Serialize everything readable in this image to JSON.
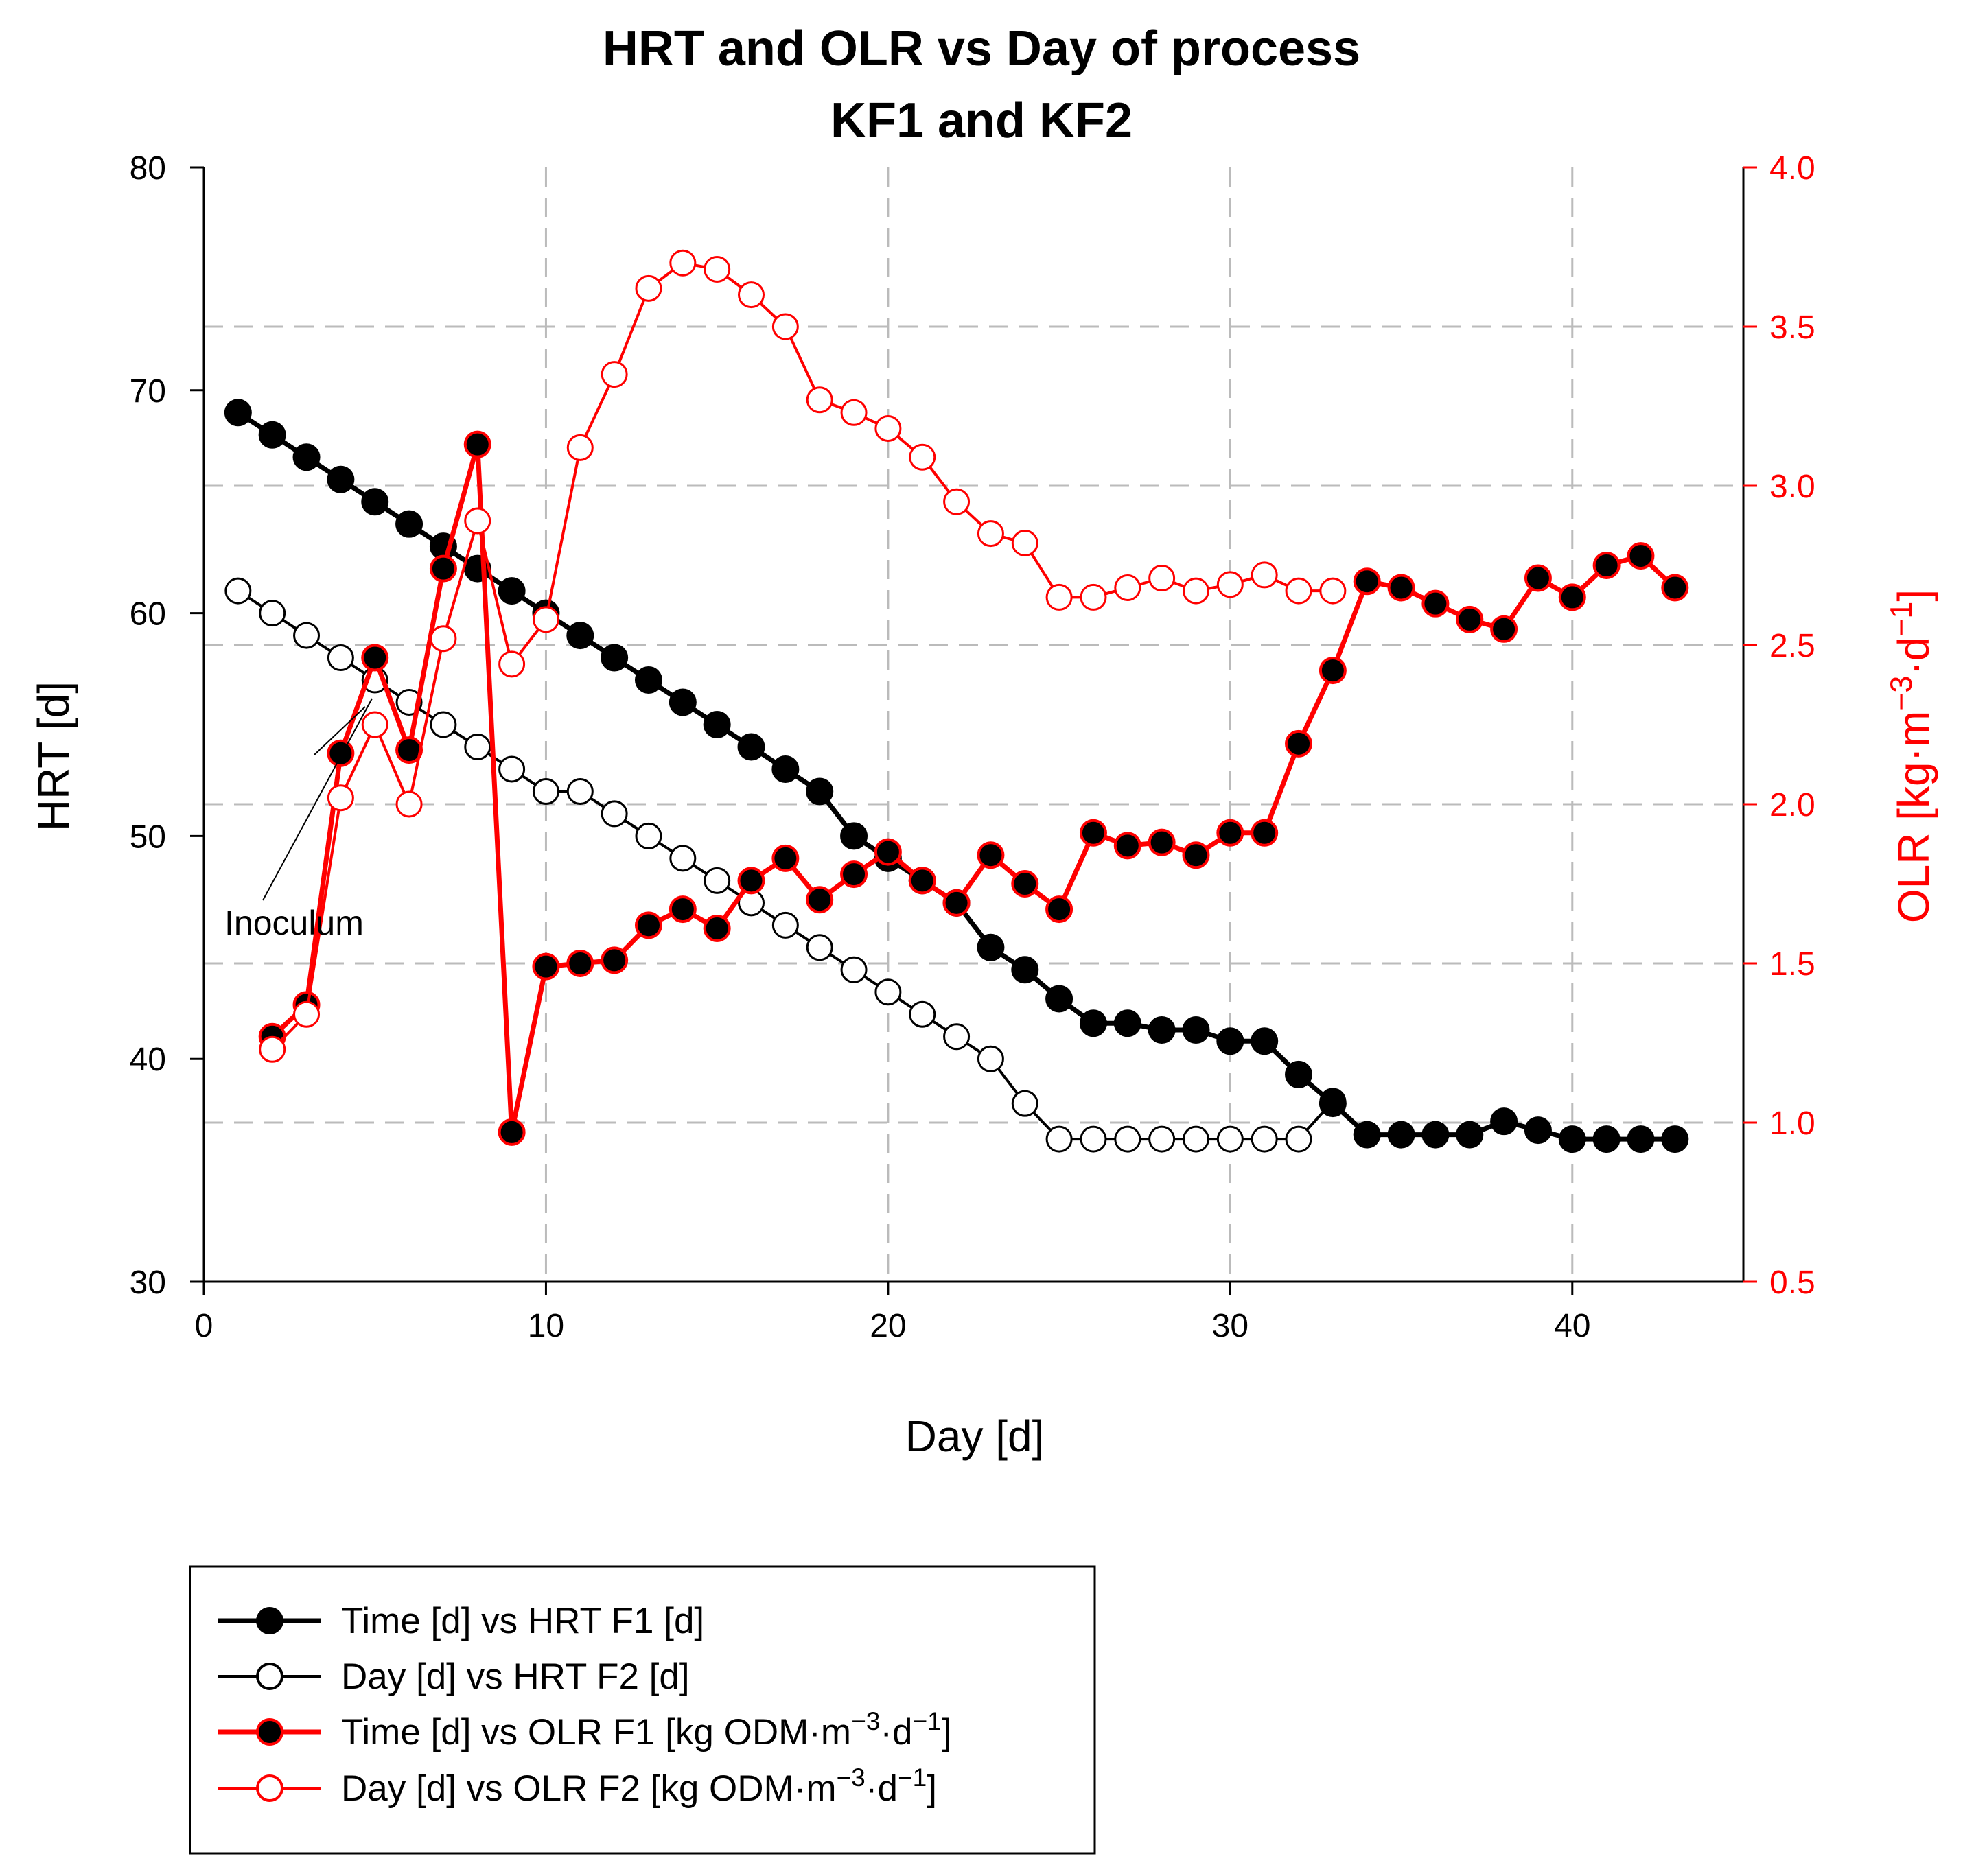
{
  "chart_data": {
    "type": "line",
    "title": [
      "HRT and OLR vs Day of process",
      "KF1 and KF2"
    ],
    "xlabel": "Day [d]",
    "ylabel_left": "HRT [d]",
    "ylabel_right": "OLR [kg·m⁻³·d⁻¹]",
    "xlim": [
      0,
      45
    ],
    "ylim_left": [
      30,
      80
    ],
    "ylim_right": [
      0.5,
      4.0
    ],
    "x_ticks": [
      0,
      10,
      20,
      30,
      40
    ],
    "y_left_ticks": [
      30,
      40,
      50,
      60,
      70,
      80
    ],
    "y_right_ticks": [
      "0.5",
      "1.0",
      "1.5",
      "2.0",
      "2.5",
      "3.0",
      "3.5",
      "4.0"
    ],
    "grid": true,
    "legend_placement": "below plot, left",
    "annotation": "Inoculum",
    "colors": {
      "hrt": "#000000",
      "olr": "#ff0000",
      "grid": "#bbbbbb"
    },
    "series": [
      {
        "name": "Time [d] vs HRT F1 [d]",
        "axis": "left",
        "color": "#000000",
        "marker": "filled",
        "x": [
          1,
          2,
          3,
          4,
          5,
          6,
          7,
          8,
          9,
          10,
          11,
          12,
          13,
          14,
          15,
          16,
          17,
          18,
          19,
          20,
          21,
          22,
          23,
          24,
          25,
          26,
          27,
          28,
          29,
          30,
          31,
          32,
          33,
          34,
          35,
          36,
          37,
          38,
          39,
          40,
          41,
          42,
          43
        ],
        "y": [
          69,
          68,
          67,
          66,
          65,
          64,
          63,
          62,
          61,
          60,
          59,
          58,
          57,
          56,
          55,
          54,
          53,
          52,
          50,
          49,
          48,
          47,
          45,
          44,
          42.7,
          41.6,
          41.6,
          41.3,
          41.3,
          40.8,
          40.8,
          39.3,
          38,
          36.6,
          36.6,
          36.6,
          36.6,
          37.2,
          36.8,
          36.4,
          36.4,
          36.4,
          36.4
        ]
      },
      {
        "name": "Day [d] vs HRT F2 [d]",
        "axis": "left",
        "color": "#000000",
        "marker": "open",
        "x": [
          1,
          2,
          3,
          4,
          5,
          6,
          7,
          8,
          9,
          10,
          11,
          12,
          13,
          14,
          15,
          16,
          17,
          18,
          19,
          20,
          21,
          22,
          23,
          24,
          25,
          26,
          27,
          28,
          29,
          30,
          31,
          32,
          33
        ],
        "y": [
          61,
          60,
          59,
          58,
          57,
          56,
          55,
          54,
          53,
          52,
          52,
          51,
          50,
          49,
          48,
          47,
          46,
          45,
          44,
          43,
          42,
          41,
          40,
          38,
          36.4,
          36.4,
          36.4,
          36.4,
          36.4,
          36.4,
          36.4,
          36.4,
          38.1
        ]
      },
      {
        "name": "Time [d] vs OLR F1 [kg ODM·m⁻³·d⁻¹]",
        "axis": "right",
        "color": "#ff0000",
        "marker": "filled",
        "x": [
          2,
          3,
          4,
          5,
          6,
          7,
          8,
          9,
          10,
          11,
          12,
          13,
          14,
          15,
          16,
          17,
          18,
          19,
          20,
          21,
          22,
          23,
          24,
          25,
          26,
          27,
          28,
          29,
          30,
          31,
          32,
          33,
          34,
          35,
          36,
          37,
          38,
          39,
          40,
          41,
          42,
          43
        ],
        "y": [
          1.27,
          1.37,
          2.16,
          2.46,
          2.17,
          2.74,
          3.13,
          0.97,
          1.49,
          1.5,
          1.51,
          1.62,
          1.67,
          1.61,
          1.76,
          1.83,
          1.7,
          1.78,
          1.85,
          1.76,
          1.69,
          1.84,
          1.75,
          1.67,
          1.91,
          1.87,
          1.88,
          1.84,
          1.91,
          1.91,
          2.19,
          2.42,
          2.7,
          2.68,
          2.63,
          2.58,
          2.55,
          2.71,
          2.65,
          2.75,
          2.78,
          2.68
        ]
      },
      {
        "name": "Day [d] vs OLR F2 [kg ODM·m⁻³·d⁻¹]",
        "axis": "right",
        "color": "#ff0000",
        "marker": "open",
        "x": [
          2,
          3,
          4,
          5,
          6,
          7,
          8,
          9,
          10,
          11,
          12,
          13,
          14,
          15,
          16,
          17,
          18,
          19,
          20,
          21,
          22,
          23,
          24,
          25,
          26,
          27,
          28,
          29,
          30,
          31,
          32,
          33
        ],
        "y": [
          1.23,
          1.34,
          2.02,
          2.25,
          2.0,
          2.52,
          2.89,
          2.44,
          2.58,
          3.12,
          3.35,
          3.62,
          3.7,
          3.68,
          3.6,
          3.5,
          3.27,
          3.23,
          3.18,
          3.09,
          2.95,
          2.85,
          2.82,
          2.65,
          2.65,
          2.68,
          2.71,
          2.67,
          2.69,
          2.72,
          2.67,
          2.67
        ]
      }
    ],
    "legend": [
      {
        "label": "Time [d] vs HRT F1 [d]"
      },
      {
        "label": "Day [d] vs HRT F2 [d]"
      },
      {
        "label": "Time [d] vs OLR F1 [kg ODM·m⁻³·d⁻¹]"
      },
      {
        "label": "Day [d] vs OLR F2 [kg ODM·m⁻³·d⁻¹]"
      }
    ]
  }
}
